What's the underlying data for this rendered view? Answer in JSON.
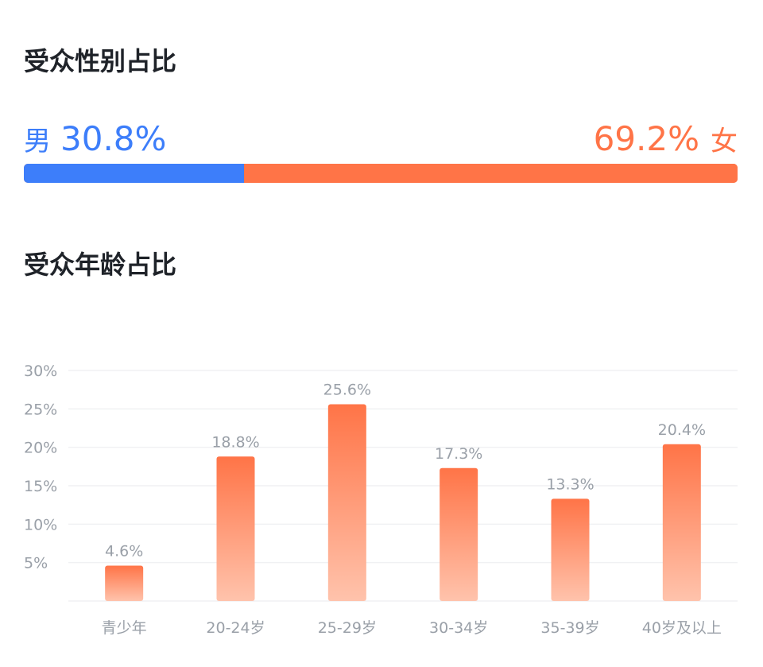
{
  "gender_section": {
    "title": "受众性别占比",
    "male": {
      "symbol": "男",
      "percent_label": "30.8%",
      "share": 0.308
    },
    "female": {
      "symbol": "女",
      "percent_label": "69.2%",
      "share": 0.692
    },
    "colors": {
      "male": "#3d7efa",
      "female": "#ff7447"
    }
  },
  "age_section": {
    "title": "受众年龄占比"
  },
  "chart_data": {
    "type": "bar",
    "categories": [
      "青少年",
      "20-24岁",
      "25-29岁",
      "30-34岁",
      "35-39岁",
      "40岁及以上"
    ],
    "values": [
      4.6,
      18.8,
      25.6,
      17.3,
      13.3,
      20.4
    ],
    "value_labels": [
      "4.6%",
      "18.8%",
      "25.6%",
      "17.3%",
      "13.3%",
      "20.4%"
    ],
    "yticks": [
      5,
      10,
      15,
      20,
      25,
      30
    ],
    "ytick_labels": [
      "5%",
      "10%",
      "15%",
      "20%",
      "25%",
      "30%"
    ],
    "ylim": [
      0,
      30
    ],
    "grid": true,
    "colors": {
      "bar_top": "#ff7447",
      "bar_bottom": "#ffc3ac",
      "label": "#9aa0a8",
      "grid": "#f0f1f3"
    }
  }
}
